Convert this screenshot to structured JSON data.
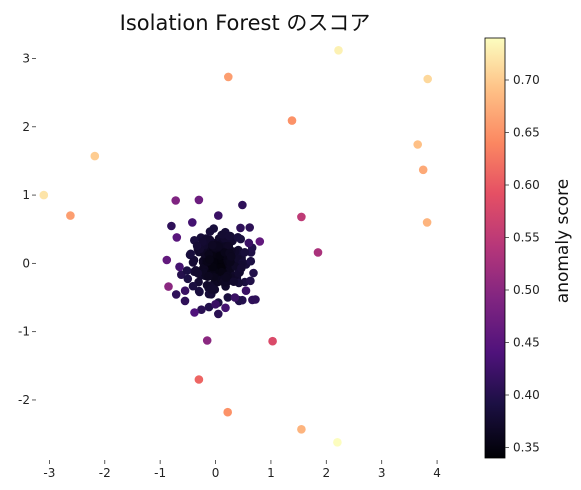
{
  "chart_data": {
    "type": "scatter",
    "title": "Isolation Forest のスコア",
    "xlabel": "",
    "ylabel": "",
    "xlim": [
      -3.35,
      4.45
    ],
    "ylim": [
      -2.85,
      3.3
    ],
    "xticks": [
      -3,
      -2,
      -1,
      0,
      1,
      2,
      3,
      4
    ],
    "yticks": [
      -2,
      -1,
      0,
      1,
      2,
      3
    ],
    "xtick_labels": [
      "-3",
      "-2",
      "-1",
      "0",
      "1",
      "2",
      "3",
      "4"
    ],
    "ytick_labels": [
      "-2",
      "-1",
      "0",
      "1",
      "2",
      "3"
    ],
    "grid": false,
    "colormap": "magma",
    "colorbar": {
      "label": "anomaly score",
      "range": [
        0.34,
        0.74
      ],
      "ticks": [
        0.35,
        0.4,
        0.45,
        0.5,
        0.55,
        0.6,
        0.65,
        0.7
      ],
      "tick_labels": [
        "0.35",
        "0.40",
        "0.45",
        "0.50",
        "0.55",
        "0.60",
        "0.65",
        "0.70"
      ]
    },
    "outliers": [
      {
        "x": 2.22,
        "y": 3.12,
        "score": 0.73
      },
      {
        "x": 0.23,
        "y": 2.73,
        "score": 0.66
      },
      {
        "x": 3.83,
        "y": 2.7,
        "score": 0.71
      },
      {
        "x": 1.38,
        "y": 2.09,
        "score": 0.65
      },
      {
        "x": -2.18,
        "y": 1.57,
        "score": 0.7
      },
      {
        "x": 3.65,
        "y": 1.74,
        "score": 0.69
      },
      {
        "x": 3.75,
        "y": 1.37,
        "score": 0.67
      },
      {
        "x": -3.1,
        "y": 1.0,
        "score": 0.72
      },
      {
        "x": -2.62,
        "y": 0.7,
        "score": 0.66
      },
      {
        "x": 3.82,
        "y": 0.6,
        "score": 0.68
      },
      {
        "x": 1.55,
        "y": 0.68,
        "score": 0.55
      },
      {
        "x": 1.85,
        "y": 0.16,
        "score": 0.53
      },
      {
        "x": -0.72,
        "y": 0.92,
        "score": 0.49
      },
      {
        "x": -0.3,
        "y": 0.93,
        "score": 0.47
      },
      {
        "x": -0.85,
        "y": -0.34,
        "score": 0.5
      },
      {
        "x": -0.15,
        "y": -1.13,
        "score": 0.5
      },
      {
        "x": 1.03,
        "y": -1.14,
        "score": 0.58
      },
      {
        "x": -0.3,
        "y": -1.7,
        "score": 0.61
      },
      {
        "x": 0.22,
        "y": -2.18,
        "score": 0.65
      },
      {
        "x": 1.55,
        "y": -2.43,
        "score": 0.68
      },
      {
        "x": 2.2,
        "y": -2.62,
        "score": 0.74
      },
      {
        "x": 0.8,
        "y": 0.32,
        "score": 0.46
      },
      {
        "x": -0.7,
        "y": 0.38,
        "score": 0.45
      },
      {
        "x": -0.88,
        "y": 0.05,
        "score": 0.46
      },
      {
        "x": -0.38,
        "y": -0.72,
        "score": 0.44
      },
      {
        "x": 0.18,
        "y": -0.65,
        "score": 0.43
      },
      {
        "x": 0.35,
        "y": -0.5,
        "score": 0.42
      },
      {
        "x": -0.65,
        "y": -0.05,
        "score": 0.43
      },
      {
        "x": 0.55,
        "y": -0.4,
        "score": 0.42
      },
      {
        "x": -0.42,
        "y": 0.6,
        "score": 0.43
      },
      {
        "x": 0.05,
        "y": 0.7,
        "score": 0.42
      },
      {
        "x": 0.6,
        "y": 0.3,
        "score": 0.42
      },
      {
        "x": -0.55,
        "y": -0.4,
        "score": 0.42
      },
      {
        "x": 0.0,
        "y": -0.6,
        "score": 0.42
      },
      {
        "x": 0.45,
        "y": 0.52,
        "score": 0.41
      }
    ],
    "inlier_cluster": {
      "count": 230,
      "center": [
        0.05,
        0.0
      ],
      "spread": [
        0.26,
        0.26
      ],
      "score_range": [
        0.34,
        0.41
      ],
      "seed": 7
    }
  }
}
